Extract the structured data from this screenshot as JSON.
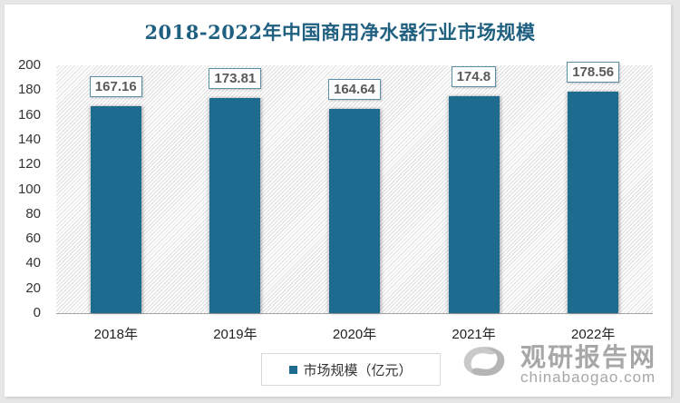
{
  "title": "2018-2022年中国商用净水器行业市场规模",
  "chart_data": {
    "type": "bar",
    "title": "2018-2022年中国商用净水器行业市场规模",
    "categories": [
      "2018年",
      "2019年",
      "2020年",
      "2021年",
      "2022年"
    ],
    "series": [
      {
        "name": "市场规模（亿元）",
        "values": [
          167.16,
          173.81,
          164.64,
          174.8,
          178.56
        ],
        "color": "#1d6b8e"
      }
    ],
    "data_labels": [
      "167.16",
      "173.81",
      "164.64",
      "174.8",
      "178.56"
    ],
    "xlabel": "",
    "ylabel": "",
    "ylim": [
      0,
      200
    ],
    "yticks": [
      "200",
      "180",
      "160",
      "140",
      "120",
      "100",
      "80",
      "60",
      "40",
      "20",
      "0"
    ],
    "grid": false,
    "legend_position": "bottom"
  },
  "legend": {
    "label": "市场规模（亿元）"
  },
  "watermark": {
    "cn": "观研报告网",
    "en": "chinabaogao.com"
  }
}
